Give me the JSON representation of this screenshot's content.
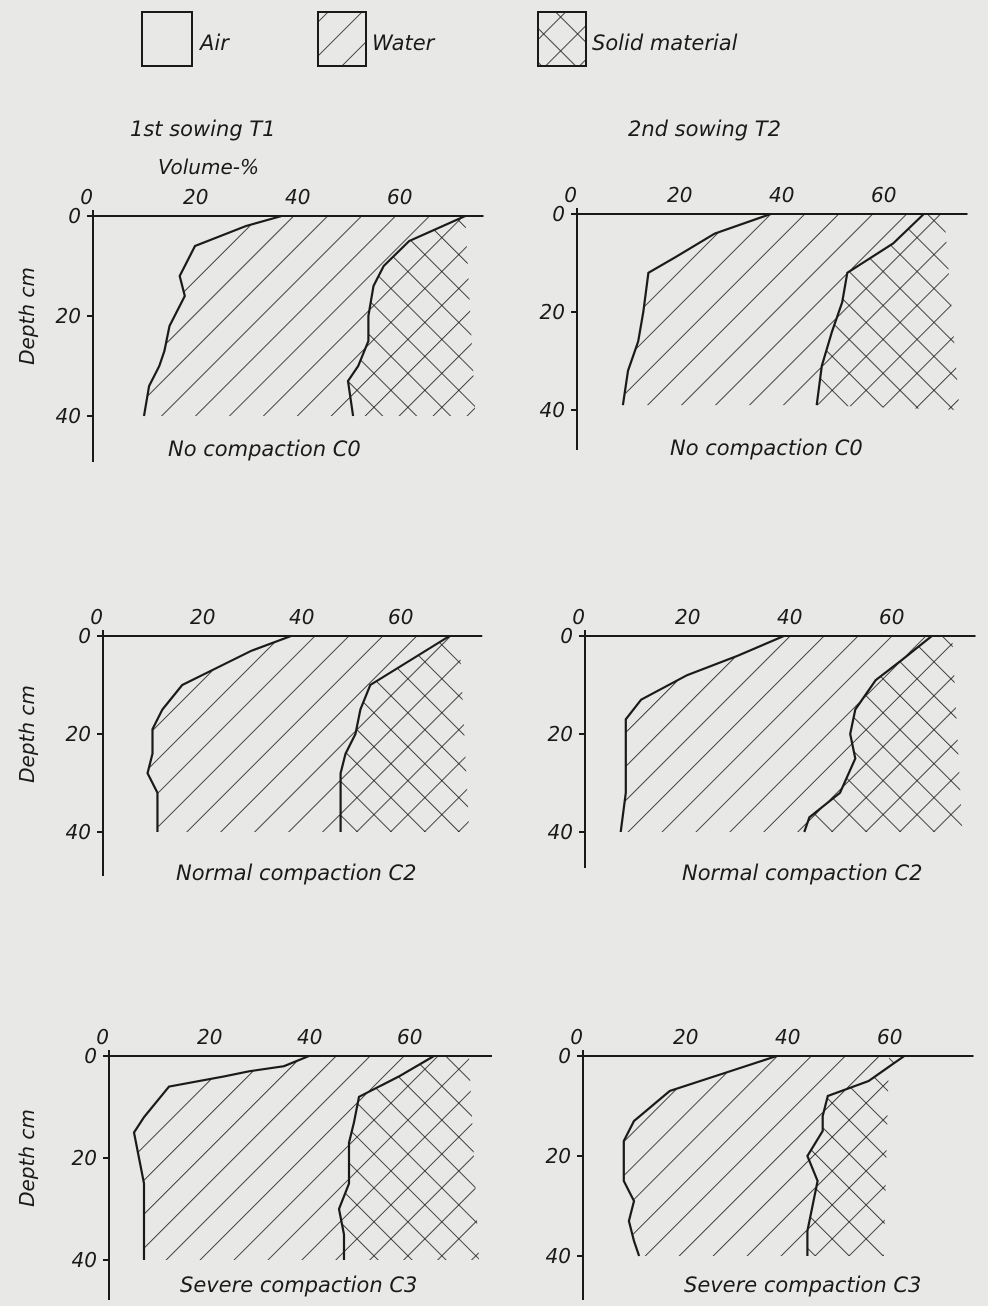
{
  "legend": {
    "items": [
      {
        "key": "air",
        "label": "Air"
      },
      {
        "key": "water",
        "label": "Water"
      },
      {
        "key": "solid",
        "label": "Solid material"
      }
    ]
  },
  "column_titles": [
    "1st sowing T1",
    "2nd sowing T2"
  ],
  "x_axis_label": "Volume-%",
  "y_axis_label": "Depth cm",
  "x_ticks": [
    "0",
    "20",
    "40",
    "60"
  ],
  "y_ticks": [
    "0",
    "20",
    "40"
  ],
  "chart_data": [
    {
      "type": "area",
      "title": "No compaction C0",
      "column": "1st sowing T1",
      "xlabel": "Volume-%",
      "ylabel": "Depth cm",
      "xlim": [
        0,
        75
      ],
      "ylim": [
        0,
        40
      ],
      "y_inverted": true,
      "air_water_boundary": [
        [
          37,
          0
        ],
        [
          30,
          2
        ],
        [
          20,
          6
        ],
        [
          17,
          12
        ],
        [
          18,
          16
        ],
        [
          15,
          22
        ],
        [
          14,
          27
        ],
        [
          13,
          30
        ],
        [
          11,
          34
        ],
        [
          10,
          40
        ]
      ],
      "water_solid_boundary": [
        [
          73,
          0
        ],
        [
          62,
          5
        ],
        [
          57,
          10
        ],
        [
          55,
          14
        ],
        [
          54,
          20
        ],
        [
          54,
          25
        ],
        [
          52,
          30
        ],
        [
          50,
          33
        ],
        [
          51,
          40
        ]
      ],
      "hatch_right_edge": [
        [
          73,
          0
        ],
        [
          75,
          40
        ]
      ]
    },
    {
      "type": "area",
      "title": "No compaction C0",
      "column": "2nd sowing T2",
      "xlabel": "Volume-%",
      "ylabel": "Depth cm",
      "xlim": [
        0,
        75
      ],
      "ylim": [
        0,
        40
      ],
      "y_inverted": true,
      "air_water_boundary": [
        [
          38,
          0
        ],
        [
          27,
          4
        ],
        [
          19,
          9
        ],
        [
          14,
          12
        ],
        [
          13,
          20
        ],
        [
          12,
          26
        ],
        [
          10,
          32
        ],
        [
          9,
          39
        ]
      ],
      "water_solid_boundary": [
        [
          68,
          0
        ],
        [
          62,
          6
        ],
        [
          56,
          10
        ],
        [
          53,
          12
        ],
        [
          52,
          18
        ],
        [
          50,
          24
        ],
        [
          48,
          31
        ],
        [
          47,
          39
        ]
      ],
      "hatch_right_edge": [
        [
          72,
          0
        ],
        [
          75,
          40
        ]
      ]
    },
    {
      "type": "area",
      "title": "Normal compaction C2",
      "column": "1st sowing T1",
      "xlabel": "Volume-%",
      "ylabel": "Depth cm",
      "xlim": [
        0,
        75
      ],
      "ylim": [
        0,
        40
      ],
      "y_inverted": true,
      "air_water_boundary": [
        [
          38,
          0
        ],
        [
          30,
          3
        ],
        [
          22,
          7
        ],
        [
          16,
          10
        ],
        [
          12,
          15
        ],
        [
          10,
          19
        ],
        [
          10,
          24
        ],
        [
          9,
          28
        ],
        [
          11,
          32
        ],
        [
          11,
          40
        ]
      ],
      "water_solid_boundary": [
        [
          70,
          0
        ],
        [
          62,
          5
        ],
        [
          54,
          10
        ],
        [
          52,
          15
        ],
        [
          51,
          20
        ],
        [
          49,
          24
        ],
        [
          48,
          28
        ],
        [
          48,
          40
        ]
      ],
      "hatch_right_edge": [
        [
          72,
          0
        ],
        [
          74,
          40
        ]
      ]
    },
    {
      "type": "area",
      "title": "Normal compaction C2",
      "column": "2nd sowing T2",
      "xlabel": "Volume-%",
      "ylabel": "Depth cm",
      "xlim": [
        0,
        75
      ],
      "ylim": [
        0,
        40
      ],
      "y_inverted": true,
      "air_water_boundary": [
        [
          39,
          0
        ],
        [
          30,
          4
        ],
        [
          20,
          8
        ],
        [
          11,
          13
        ],
        [
          8,
          17
        ],
        [
          8,
          25
        ],
        [
          8,
          32
        ],
        [
          7,
          40
        ]
      ],
      "water_solid_boundary": [
        [
          68,
          0
        ],
        [
          62,
          5
        ],
        [
          57,
          9
        ],
        [
          53,
          15
        ],
        [
          52,
          20
        ],
        [
          53,
          25
        ],
        [
          50,
          32
        ],
        [
          44,
          37
        ],
        [
          43,
          40
        ]
      ],
      "hatch_right_edge": [
        [
          72,
          0
        ],
        [
          74,
          40
        ]
      ]
    },
    {
      "type": "area",
      "title": "Severe compaction C3",
      "column": "1st sowing T1",
      "xlabel": "Volume-%",
      "ylabel": "Depth cm",
      "xlim": [
        0,
        75
      ],
      "ylim": [
        0,
        40
      ],
      "y_inverted": true,
      "air_water_boundary": [
        [
          40,
          0
        ],
        [
          35,
          2
        ],
        [
          28,
          3
        ],
        [
          23,
          4
        ],
        [
          12,
          6
        ],
        [
          7,
          12
        ],
        [
          5,
          15
        ],
        [
          6,
          20
        ],
        [
          7,
          25
        ],
        [
          7,
          30
        ],
        [
          7,
          40
        ]
      ],
      "water_solid_boundary": [
        [
          65,
          0
        ],
        [
          58,
          4
        ],
        [
          50,
          8
        ],
        [
          49,
          13
        ],
        [
          48,
          17
        ],
        [
          48,
          25
        ],
        [
          46,
          30
        ],
        [
          47,
          35
        ],
        [
          47,
          40
        ]
      ],
      "hatch_right_edge": [
        [
          72,
          0
        ],
        [
          74,
          40
        ]
      ]
    },
    {
      "type": "area",
      "title": "Severe compaction C3",
      "column": "2nd sowing T2",
      "xlabel": "Volume-%",
      "ylabel": "Depth cm",
      "xlim": [
        0,
        75
      ],
      "ylim": [
        0,
        40
      ],
      "y_inverted": true,
      "air_water_boundary": [
        [
          38,
          0
        ],
        [
          29,
          3
        ],
        [
          17,
          7
        ],
        [
          10,
          13
        ],
        [
          8,
          17
        ],
        [
          8,
          25
        ],
        [
          10,
          29
        ],
        [
          9,
          33
        ],
        [
          10,
          37
        ],
        [
          11,
          40
        ]
      ],
      "water_solid_boundary": [
        [
          63,
          0
        ],
        [
          56,
          5
        ],
        [
          48,
          8
        ],
        [
          47,
          12
        ],
        [
          47,
          15
        ],
        [
          44,
          20
        ],
        [
          46,
          25
        ],
        [
          45,
          30
        ],
        [
          44,
          35
        ],
        [
          44,
          40
        ]
      ],
      "hatch_right_edge": [
        [
          60,
          0
        ],
        [
          59,
          40
        ]
      ]
    }
  ]
}
